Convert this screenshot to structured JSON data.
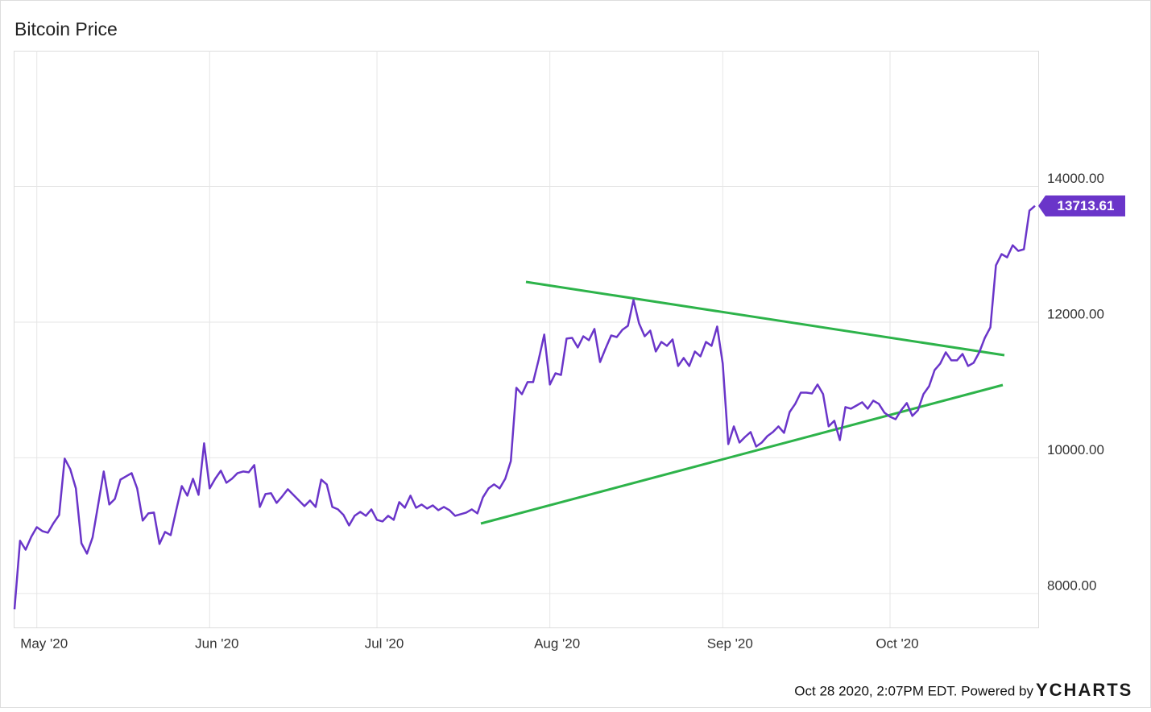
{
  "chart_data": {
    "type": "line",
    "title": "Bitcoin Price",
    "categories": [
      null,
      null,
      null,
      null,
      "May '20",
      null,
      null,
      null,
      null,
      null,
      null,
      null,
      null,
      null,
      null,
      null,
      null,
      null,
      null,
      null,
      null,
      null,
      null,
      null,
      null,
      null,
      null,
      null,
      null,
      null,
      null,
      null,
      null,
      null,
      null,
      "Jun '20",
      null,
      null,
      null,
      null,
      null,
      null,
      null,
      null,
      null,
      null,
      null,
      null,
      null,
      null,
      null,
      null,
      null,
      null,
      null,
      null,
      null,
      null,
      null,
      null,
      null,
      null,
      null,
      null,
      null,
      "Jul '20",
      null,
      null,
      null,
      null,
      null,
      null,
      null,
      null,
      null,
      null,
      null,
      null,
      null,
      null,
      null,
      null,
      null,
      null,
      null,
      null,
      null,
      null,
      null,
      null,
      null,
      null,
      null,
      null,
      null,
      null,
      "Aug '20",
      null,
      null,
      null,
      null,
      null,
      null,
      null,
      null,
      null,
      null,
      null,
      null,
      null,
      null,
      null,
      null,
      null,
      null,
      null,
      null,
      null,
      null,
      null,
      null,
      null,
      null,
      null,
      null,
      null,
      null,
      "Sep '20",
      null,
      null,
      null,
      null,
      null,
      null,
      null,
      null,
      null,
      null,
      null,
      null,
      null,
      null,
      null,
      null,
      null,
      null,
      null,
      null,
      null,
      null,
      null,
      null,
      null,
      null,
      null,
      null,
      null,
      "Oct '20",
      null,
      null,
      null,
      null,
      null,
      null,
      null,
      null,
      null,
      null,
      null,
      null,
      null,
      null,
      null,
      null,
      null,
      null,
      null,
      null,
      null,
      null,
      null,
      null,
      null,
      null
    ],
    "values": [
      7768,
      8777,
      8646,
      8835,
      8978,
      8920,
      8896,
      9038,
      9157,
      9988,
      9834,
      9549,
      8741,
      8587,
      8825,
      9311,
      9798,
      9311,
      9394,
      9679,
      9727,
      9774,
      9549,
      9074,
      9181,
      9193,
      8730,
      8908,
      8860,
      9228,
      9584,
      9442,
      9691,
      9454,
      10214,
      9549,
      9691,
      9810,
      9632,
      9691,
      9774,
      9798,
      9786,
      9893,
      9276,
      9466,
      9478,
      9335,
      9430,
      9537,
      9454,
      9371,
      9288,
      9371,
      9276,
      9679,
      9608,
      9276,
      9240,
      9157,
      9003,
      9145,
      9204,
      9145,
      9240,
      9086,
      9062,
      9145,
      9086,
      9347,
      9264,
      9442,
      9264,
      9311,
      9252,
      9299,
      9228,
      9276,
      9228,
      9145,
      9169,
      9193,
      9240,
      9181,
      9418,
      9549,
      9608,
      9549,
      9691,
      9952,
      11032,
      10938,
      11116,
      11116,
      11448,
      11816,
      11080,
      11246,
      11222,
      11757,
      11768,
      11626,
      11792,
      11733,
      11899,
      11412,
      11614,
      11804,
      11780,
      11887,
      11946,
      12326,
      11982,
      11792,
      11875,
      11567,
      11709,
      11650,
      11745,
      11353,
      11472,
      11353,
      11567,
      11496,
      11709,
      11650,
      11935,
      11389,
      10202,
      10463,
      10225,
      10308,
      10380,
      10166,
      10225,
      10320,
      10380,
      10463,
      10368,
      10676,
      10795,
      10961,
      10961,
      10949,
      11080,
      10938,
      10463,
      10546,
      10261,
      10748,
      10724,
      10771,
      10819,
      10724,
      10843,
      10795,
      10665,
      10605,
      10569,
      10700,
      10807,
      10617,
      10700,
      10938,
      11056,
      11294,
      11389,
      11555,
      11436,
      11436,
      11531,
      11353,
      11401,
      11555,
      11768,
      11923,
      12837,
      13003,
      12955,
      13133,
      13050,
      13074,
      13644,
      13713.61
    ],
    "color": "#6a35c9",
    "ylim": [
      7500,
      16000
    ],
    "yticks": [
      {
        "value": 8000,
        "label": "8000.00"
      },
      {
        "value": 10000,
        "label": "10000.00"
      },
      {
        "value": 12000,
        "label": "12000.00"
      },
      {
        "value": 14000,
        "label": "14000.00"
      }
    ],
    "grid": true,
    "footer": "Oct 28 2020, 2:07PM EDT. Powered by",
    "brand": "YCHARTS"
  }
}
